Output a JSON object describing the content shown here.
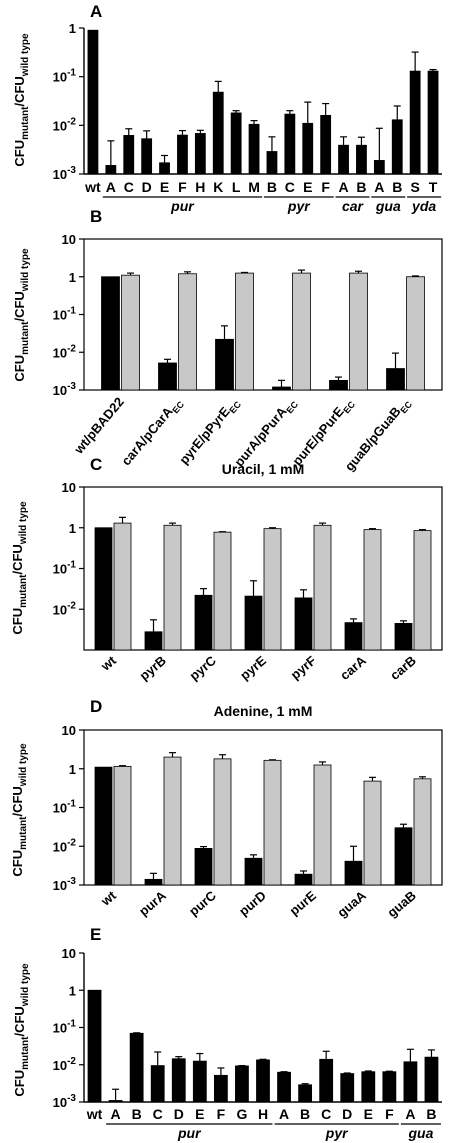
{
  "figure": {
    "colors": {
      "black_bar": "#000000",
      "gray_bar": "#c8c8c8",
      "axis": "#000000"
    },
    "ylabel_main": "CFU",
    "ylabel_sub1": "mutant",
    "ylabel_sep": "/CFU",
    "ylabel_sub2": "wild type"
  },
  "chart_data": [
    {
      "panel": "A",
      "type": "bar",
      "log_scale": true,
      "ylim": [
        0.001,
        1
      ],
      "yticks": [
        "1",
        "10-1",
        "10-2",
        "10-3"
      ],
      "categories": [
        "wt",
        "A",
        "C",
        "D",
        "E",
        "F",
        "H",
        "K",
        "L",
        "M",
        "B",
        "C",
        "E",
        "F",
        "A",
        "B",
        "A",
        "B",
        "S",
        "T"
      ],
      "values": [
        0.9,
        0.0015,
        0.0062,
        0.0053,
        0.0017,
        0.0063,
        0.0068,
        0.048,
        0.018,
        0.0105,
        0.0029,
        0.017,
        0.011,
        0.016,
        0.0039,
        0.0039,
        0.0019,
        0.013,
        0.13,
        0.13
      ],
      "err_upper": [
        null,
        0.0048,
        0.0085,
        0.0077,
        0.0024,
        0.0078,
        0.0079,
        0.08,
        0.02,
        0.0125,
        0.0058,
        0.02,
        0.03,
        0.028,
        0.0058,
        0.0057,
        0.0087,
        0.025,
        0.32,
        0.14
      ],
      "groups": [
        {
          "label": "pur",
          "from": 1,
          "to": 9
        },
        {
          "label": "pyr",
          "from": 10,
          "to": 13
        },
        {
          "label": "car",
          "from": 14,
          "to": 15
        },
        {
          "label": "gua",
          "from": 16,
          "to": 17
        },
        {
          "label": "yda",
          "from": 18,
          "to": 19
        }
      ]
    },
    {
      "panel": "B",
      "type": "bar",
      "log_scale": true,
      "ylim": [
        0.001,
        10
      ],
      "yticks": [
        "10",
        "1",
        "10-1",
        "10-2",
        "10-3"
      ],
      "categories": [
        {
          "main": "wt/pBAD22",
          "sub": ""
        },
        {
          "main": "carA/pCarA",
          "sub": "EC"
        },
        {
          "main": "pyrE/pPyrE",
          "sub": "EC"
        },
        {
          "main": "purA/pPurA",
          "sub": "EC"
        },
        {
          "main": "purE/pPurE",
          "sub": "EC"
        },
        {
          "main": "guaB/pGuaB",
          "sub": "EC"
        }
      ],
      "series": [
        {
          "color": "black",
          "values": [
            1.0,
            0.0052,
            0.022,
            0.0012,
            0.0018,
            0.0037
          ],
          "err_upper": [
            null,
            0.0065,
            0.05,
            0.0018,
            0.0022,
            0.0095
          ]
        },
        {
          "color": "gray",
          "values": [
            1.1,
            1.2,
            1.25,
            1.25,
            1.25,
            1.0
          ],
          "err_upper": [
            1.25,
            1.35,
            1.3,
            1.5,
            1.4,
            1.05
          ]
        }
      ]
    },
    {
      "panel": "C",
      "type": "bar",
      "title": "Uracil, 1 mM",
      "log_scale": true,
      "ylim": [
        0.001,
        10
      ],
      "yticks": [
        "10",
        "1",
        "10-1",
        "10-2"
      ],
      "categories": [
        "wt",
        "pyrB",
        "pyrC",
        "pyrE",
        "pyrF",
        "carA",
        "carB"
      ],
      "series": [
        {
          "color": "black",
          "values": [
            1.0,
            0.0028,
            0.022,
            0.021,
            0.019,
            0.0047,
            0.0045
          ],
          "err_upper": [
            null,
            0.0055,
            0.032,
            0.05,
            0.03,
            0.0058,
            0.0052
          ]
        },
        {
          "color": "gray",
          "values": [
            1.3,
            1.15,
            0.78,
            0.95,
            1.15,
            0.9,
            0.85
          ],
          "err_upper": [
            1.8,
            1.3,
            0.8,
            1.0,
            1.3,
            0.95,
            0.9
          ]
        }
      ]
    },
    {
      "panel": "D",
      "type": "bar",
      "title": "Adenine, 1 mM",
      "log_scale": true,
      "ylim": [
        0.001,
        10
      ],
      "yticks": [
        "10",
        "1",
        "10-1",
        "10-2",
        "10-3"
      ],
      "categories": [
        "wt",
        "purA",
        "purC",
        "purD",
        "purE",
        "guaA",
        "guaB"
      ],
      "series": [
        {
          "color": "black",
          "values": [
            1.1,
            0.0014,
            0.0088,
            0.0049,
            0.0019,
            0.0041,
            0.03
          ],
          "err_upper": [
            null,
            0.002,
            0.0098,
            0.006,
            0.0023,
            0.01,
            0.037
          ]
        },
        {
          "color": "gray",
          "values": [
            1.15,
            2.0,
            1.8,
            1.65,
            1.25,
            0.48,
            0.55
          ],
          "err_upper": [
            1.2,
            2.6,
            2.3,
            1.7,
            1.5,
            0.6,
            0.62
          ]
        }
      ]
    },
    {
      "panel": "E",
      "type": "bar",
      "log_scale": true,
      "ylim": [
        0.001,
        10
      ],
      "yticks": [
        "10",
        "1",
        "10-1",
        "10-2",
        "10-3"
      ],
      "categories": [
        "wt",
        "A",
        "B",
        "C",
        "D",
        "E",
        "F",
        "G",
        "H",
        "A",
        "B",
        "C",
        "D",
        "E",
        "F",
        "A",
        "B"
      ],
      "values": [
        1.0,
        0.0011,
        0.07,
        0.0095,
        0.0145,
        0.0125,
        0.0052,
        0.0093,
        0.0135,
        0.0063,
        0.0029,
        0.014,
        0.0058,
        0.0065,
        0.0065,
        0.012,
        0.016
      ],
      "err_upper": [
        null,
        0.0022,
        0.072,
        0.022,
        0.0165,
        0.02,
        0.0082,
        0.0095,
        0.014,
        0.0065,
        0.0031,
        0.023,
        0.006,
        0.0068,
        0.0067,
        0.026,
        0.025
      ],
      "groups": [
        {
          "label": "pur",
          "from": 1,
          "to": 8
        },
        {
          "label": "pyr",
          "from": 9,
          "to": 14
        },
        {
          "label": "gua",
          "from": 15,
          "to": 16
        }
      ]
    }
  ]
}
